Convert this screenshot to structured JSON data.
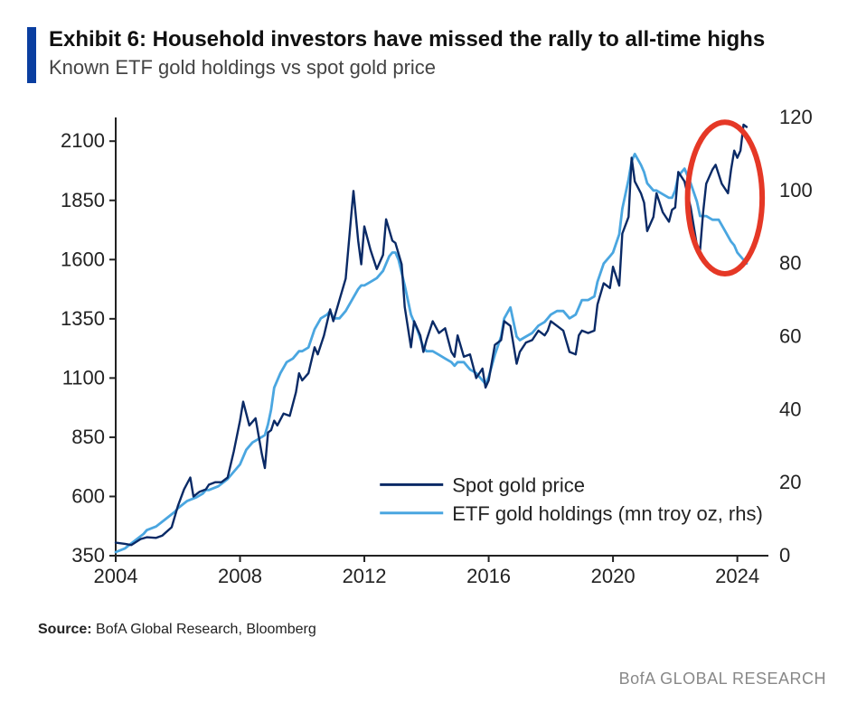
{
  "header": {
    "title": "Exhibit 6: Household investors have missed the rally to all-time highs",
    "subtitle": "Known ETF gold holdings vs spot gold price"
  },
  "source": {
    "label": "Source:",
    "text": " BofA Global Research, Bloomberg"
  },
  "brand": "BofA GLOBAL RESEARCH",
  "chart": {
    "type": "line-dual-axis",
    "background_color": "#ffffff",
    "axis_color": "#222222",
    "axis_font_size": 22,
    "x": {
      "min": 2004,
      "max": 2025,
      "ticks": [
        2004,
        2008,
        2012,
        2016,
        2020,
        2024
      ]
    },
    "y_left": {
      "min": 350,
      "max": 2200,
      "ticks": [
        350,
        600,
        850,
        1100,
        1350,
        1600,
        1850,
        2100
      ]
    },
    "y_right": {
      "min": 0,
      "max": 120,
      "ticks": [
        0,
        20,
        40,
        60,
        80,
        100,
        120
      ]
    },
    "legend": {
      "items": [
        {
          "label": "Spot gold price",
          "color": "#0a2a66",
          "line_width": 3
        },
        {
          "label": "ETF gold holdings (mn troy oz, rhs)",
          "color": "#4aa6e0",
          "line_width": 3
        }
      ]
    },
    "highlight_ellipse": {
      "cx_year": 2023.6,
      "cy_left_value": 1860,
      "rx_years": 1.2,
      "ry_left_value": 320,
      "stroke": "#e53826",
      "stroke_width": 6
    },
    "series_spot": {
      "color": "#0a2a66",
      "line_width": 2.4,
      "points": [
        [
          2004.0,
          405
        ],
        [
          2004.3,
          400
        ],
        [
          2004.5,
          395
        ],
        [
          2004.8,
          420
        ],
        [
          2005.0,
          428
        ],
        [
          2005.3,
          425
        ],
        [
          2005.5,
          435
        ],
        [
          2005.8,
          470
        ],
        [
          2006.0,
          560
        ],
        [
          2006.2,
          630
        ],
        [
          2006.4,
          680
        ],
        [
          2006.5,
          600
        ],
        [
          2006.7,
          620
        ],
        [
          2006.9,
          630
        ],
        [
          2007.0,
          650
        ],
        [
          2007.2,
          660
        ],
        [
          2007.4,
          660
        ],
        [
          2007.6,
          680
        ],
        [
          2007.8,
          790
        ],
        [
          2008.0,
          920
        ],
        [
          2008.1,
          1000
        ],
        [
          2008.3,
          900
        ],
        [
          2008.5,
          930
        ],
        [
          2008.7,
          780
        ],
        [
          2008.8,
          720
        ],
        [
          2008.9,
          870
        ],
        [
          2009.0,
          880
        ],
        [
          2009.1,
          920
        ],
        [
          2009.2,
          900
        ],
        [
          2009.4,
          950
        ],
        [
          2009.6,
          940
        ],
        [
          2009.8,
          1040
        ],
        [
          2009.9,
          1120
        ],
        [
          2010.0,
          1090
        ],
        [
          2010.2,
          1120
        ],
        [
          2010.4,
          1230
        ],
        [
          2010.5,
          1200
        ],
        [
          2010.7,
          1280
        ],
        [
          2010.9,
          1390
        ],
        [
          2011.0,
          1340
        ],
        [
          2011.2,
          1430
        ],
        [
          2011.4,
          1520
        ],
        [
          2011.6,
          1820
        ],
        [
          2011.65,
          1890
        ],
        [
          2011.8,
          1680
        ],
        [
          2011.9,
          1580
        ],
        [
          2012.0,
          1740
        ],
        [
          2012.2,
          1640
        ],
        [
          2012.4,
          1560
        ],
        [
          2012.6,
          1620
        ],
        [
          2012.7,
          1770
        ],
        [
          2012.9,
          1680
        ],
        [
          2013.0,
          1670
        ],
        [
          2013.2,
          1580
        ],
        [
          2013.3,
          1400
        ],
        [
          2013.5,
          1230
        ],
        [
          2013.6,
          1340
        ],
        [
          2013.8,
          1280
        ],
        [
          2013.9,
          1210
        ],
        [
          2014.0,
          1260
        ],
        [
          2014.2,
          1340
        ],
        [
          2014.4,
          1290
        ],
        [
          2014.6,
          1310
        ],
        [
          2014.8,
          1210
        ],
        [
          2014.9,
          1190
        ],
        [
          2015.0,
          1280
        ],
        [
          2015.2,
          1190
        ],
        [
          2015.4,
          1200
        ],
        [
          2015.6,
          1100
        ],
        [
          2015.8,
          1140
        ],
        [
          2015.9,
          1060
        ],
        [
          2016.0,
          1090
        ],
        [
          2016.2,
          1240
        ],
        [
          2016.4,
          1260
        ],
        [
          2016.5,
          1340
        ],
        [
          2016.7,
          1320
        ],
        [
          2016.9,
          1160
        ],
        [
          2017.0,
          1210
        ],
        [
          2017.2,
          1250
        ],
        [
          2017.4,
          1260
        ],
        [
          2017.6,
          1300
        ],
        [
          2017.8,
          1280
        ],
        [
          2017.9,
          1300
        ],
        [
          2018.0,
          1340
        ],
        [
          2018.2,
          1320
        ],
        [
          2018.4,
          1300
        ],
        [
          2018.6,
          1210
        ],
        [
          2018.8,
          1200
        ],
        [
          2018.9,
          1280
        ],
        [
          2019.0,
          1300
        ],
        [
          2019.2,
          1290
        ],
        [
          2019.4,
          1300
        ],
        [
          2019.5,
          1410
        ],
        [
          2019.7,
          1500
        ],
        [
          2019.9,
          1480
        ],
        [
          2020.0,
          1570
        ],
        [
          2020.2,
          1490
        ],
        [
          2020.3,
          1710
        ],
        [
          2020.5,
          1780
        ],
        [
          2020.6,
          2030
        ],
        [
          2020.7,
          1930
        ],
        [
          2020.9,
          1880
        ],
        [
          2021.0,
          1840
        ],
        [
          2021.1,
          1720
        ],
        [
          2021.3,
          1780
        ],
        [
          2021.4,
          1880
        ],
        [
          2021.6,
          1800
        ],
        [
          2021.8,
          1760
        ],
        [
          2021.9,
          1810
        ],
        [
          2022.0,
          1820
        ],
        [
          2022.1,
          1970
        ],
        [
          2022.3,
          1930
        ],
        [
          2022.5,
          1820
        ],
        [
          2022.7,
          1660
        ],
        [
          2022.8,
          1640
        ],
        [
          2022.9,
          1800
        ],
        [
          2023.0,
          1920
        ],
        [
          2023.2,
          1980
        ],
        [
          2023.3,
          2000
        ],
        [
          2023.5,
          1920
        ],
        [
          2023.7,
          1880
        ],
        [
          2023.8,
          1980
        ],
        [
          2023.9,
          2060
        ],
        [
          2024.0,
          2030
        ],
        [
          2024.1,
          2060
        ],
        [
          2024.2,
          2170
        ],
        [
          2024.3,
          2160
        ]
      ]
    },
    "series_etf": {
      "color": "#4aa6e0",
      "line_width": 2.8,
      "points": [
        [
          2004.0,
          1
        ],
        [
          2004.3,
          2
        ],
        [
          2004.6,
          4
        ],
        [
          2004.9,
          6
        ],
        [
          2005.0,
          7
        ],
        [
          2005.3,
          8
        ],
        [
          2005.6,
          10
        ],
        [
          2005.9,
          12
        ],
        [
          2006.0,
          13
        ],
        [
          2006.3,
          15
        ],
        [
          2006.6,
          16
        ],
        [
          2006.8,
          17
        ],
        [
          2006.9,
          18
        ],
        [
          2007.0,
          18
        ],
        [
          2007.3,
          19
        ],
        [
          2007.6,
          21
        ],
        [
          2007.9,
          24
        ],
        [
          2008.0,
          25
        ],
        [
          2008.2,
          29
        ],
        [
          2008.4,
          31
        ],
        [
          2008.6,
          32
        ],
        [
          2008.8,
          33
        ],
        [
          2008.9,
          36
        ],
        [
          2009.0,
          40
        ],
        [
          2009.1,
          46
        ],
        [
          2009.3,
          50
        ],
        [
          2009.5,
          53
        ],
        [
          2009.7,
          54
        ],
        [
          2009.9,
          56
        ],
        [
          2010.0,
          56
        ],
        [
          2010.2,
          57
        ],
        [
          2010.4,
          62
        ],
        [
          2010.6,
          65
        ],
        [
          2010.8,
          66
        ],
        [
          2010.9,
          67
        ],
        [
          2011.0,
          65
        ],
        [
          2011.2,
          65
        ],
        [
          2011.4,
          67
        ],
        [
          2011.6,
          70
        ],
        [
          2011.8,
          73
        ],
        [
          2011.9,
          74
        ],
        [
          2012.0,
          74
        ],
        [
          2012.2,
          75
        ],
        [
          2012.4,
          76
        ],
        [
          2012.6,
          78
        ],
        [
          2012.8,
          82
        ],
        [
          2012.9,
          83
        ],
        [
          2013.0,
          83
        ],
        [
          2013.1,
          81
        ],
        [
          2013.3,
          74
        ],
        [
          2013.5,
          66
        ],
        [
          2013.7,
          62
        ],
        [
          2013.9,
          57
        ],
        [
          2014.0,
          56
        ],
        [
          2014.2,
          56
        ],
        [
          2014.4,
          55
        ],
        [
          2014.6,
          54
        ],
        [
          2014.8,
          53
        ],
        [
          2014.9,
          52
        ],
        [
          2015.0,
          53
        ],
        [
          2015.2,
          53
        ],
        [
          2015.4,
          51
        ],
        [
          2015.6,
          50
        ],
        [
          2015.8,
          48
        ],
        [
          2015.9,
          47
        ],
        [
          2016.0,
          49
        ],
        [
          2016.2,
          55
        ],
        [
          2016.4,
          60
        ],
        [
          2016.5,
          65
        ],
        [
          2016.7,
          68
        ],
        [
          2016.9,
          60
        ],
        [
          2017.0,
          59
        ],
        [
          2017.2,
          60
        ],
        [
          2017.4,
          61
        ],
        [
          2017.6,
          63
        ],
        [
          2017.8,
          64
        ],
        [
          2017.9,
          65
        ],
        [
          2018.0,
          66
        ],
        [
          2018.2,
          67
        ],
        [
          2018.4,
          67
        ],
        [
          2018.6,
          65
        ],
        [
          2018.8,
          66
        ],
        [
          2018.9,
          68
        ],
        [
          2019.0,
          70
        ],
        [
          2019.2,
          70
        ],
        [
          2019.4,
          71
        ],
        [
          2019.5,
          75
        ],
        [
          2019.7,
          80
        ],
        [
          2019.9,
          82
        ],
        [
          2020.0,
          83
        ],
        [
          2020.2,
          88
        ],
        [
          2020.3,
          95
        ],
        [
          2020.5,
          103
        ],
        [
          2020.6,
          108
        ],
        [
          2020.7,
          110
        ],
        [
          2020.9,
          107
        ],
        [
          2021.0,
          105
        ],
        [
          2021.1,
          102
        ],
        [
          2021.3,
          100
        ],
        [
          2021.4,
          100
        ],
        [
          2021.6,
          99
        ],
        [
          2021.8,
          98
        ],
        [
          2021.9,
          98
        ],
        [
          2022.0,
          100
        ],
        [
          2022.1,
          104
        ],
        [
          2022.3,
          106
        ],
        [
          2022.5,
          102
        ],
        [
          2022.7,
          97
        ],
        [
          2022.8,
          93
        ],
        [
          2022.9,
          93
        ],
        [
          2023.0,
          93
        ],
        [
          2023.2,
          92
        ],
        [
          2023.4,
          92
        ],
        [
          2023.6,
          89
        ],
        [
          2023.8,
          86
        ],
        [
          2023.9,
          85
        ],
        [
          2024.0,
          83
        ],
        [
          2024.1,
          82
        ],
        [
          2024.2,
          81
        ],
        [
          2024.3,
          80
        ]
      ]
    }
  }
}
